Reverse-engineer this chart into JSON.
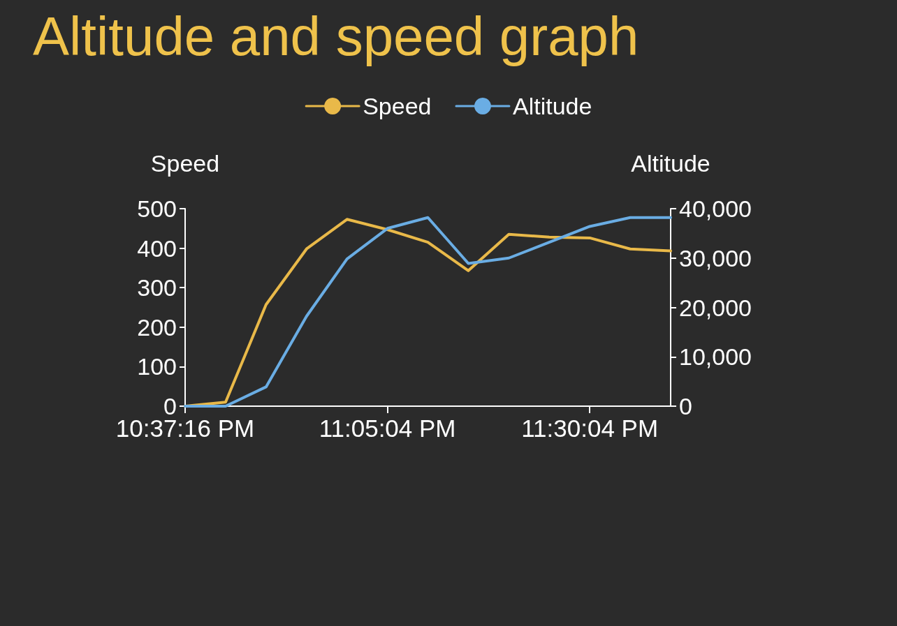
{
  "chart_data": {
    "type": "line",
    "title": "Altitude and speed graph",
    "ylabel": "Speed",
    "y2label": "Altitude",
    "categories": [
      "10:37:16 PM",
      null,
      null,
      null,
      null,
      "11:05:04 PM",
      null,
      null,
      null,
      null,
      "11:30:04 PM",
      null,
      null
    ],
    "series": [
      {
        "name": "Speed",
        "color": "#e9b949",
        "values": [
          0,
          10,
          257,
          398,
          473,
          447,
          415,
          343,
          435,
          428,
          426,
          398,
          393
        ]
      },
      {
        "name": "Altitude",
        "color": "#6aade4",
        "axis": "y2",
        "values": [
          0,
          0,
          3900,
          18200,
          29800,
          36000,
          38200,
          28900,
          30000,
          33200,
          36400,
          38200,
          38200
        ]
      }
    ],
    "ylim": [
      0,
      500
    ],
    "yticks": [
      0,
      100,
      200,
      300,
      400,
      500
    ],
    "y2lim": [
      0,
      40000
    ],
    "y2ticks": [
      0,
      {
        "value": 10000,
        "label": "10,000"
      },
      {
        "value": 20000,
        "label": "20,000"
      },
      {
        "value": 30000,
        "label": "30,000"
      },
      {
        "value": 40000,
        "label": "40,000"
      }
    ],
    "legend": "top"
  }
}
